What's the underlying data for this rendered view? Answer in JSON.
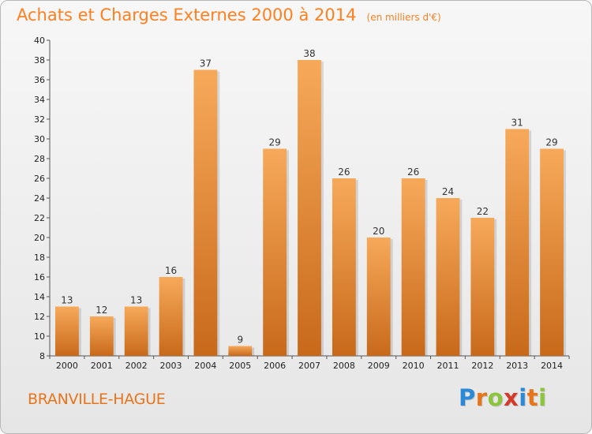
{
  "header": {
    "title": "Achats et Charges Externes 2000 à 2014",
    "subtitle": "(en milliers d'€)"
  },
  "footer": {
    "commune": "BRANVILLE-HAGUE",
    "logo": {
      "letters": [
        "P",
        "r",
        "o",
        "x",
        "i",
        "t",
        "i"
      ],
      "colors": [
        "#2a8ad8",
        "#e8741a",
        "#8cc43c",
        "#d43a2a",
        "#2a8ad8",
        "#e8741a",
        "#8cc43c"
      ]
    }
  },
  "chart_data": {
    "type": "bar",
    "categories": [
      "2000",
      "2001",
      "2002",
      "2003",
      "2004",
      "2005",
      "2006",
      "2007",
      "2008",
      "2009",
      "2010",
      "2011",
      "2012",
      "2013",
      "2014"
    ],
    "values": [
      13,
      12,
      13,
      16,
      37,
      9,
      29,
      38,
      26,
      20,
      26,
      24,
      22,
      31,
      29
    ],
    "ylim": [
      8,
      40
    ],
    "yticks": [
      8,
      10,
      12,
      14,
      16,
      18,
      20,
      22,
      24,
      26,
      28,
      30,
      32,
      34,
      36,
      38,
      40
    ],
    "grid": false,
    "bar_color_top": "#f7a95a",
    "bar_color_bottom": "#c8691a"
  }
}
